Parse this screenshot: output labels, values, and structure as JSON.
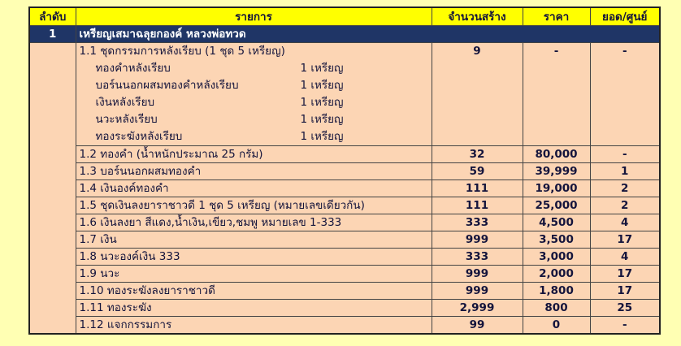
{
  "header": {
    "columns": [
      "ลำดับ",
      "รายการ",
      "จำนวนสร้าง",
      "ราคา",
      "ยอด/ศูนย์"
    ]
  },
  "group": {
    "number": "1",
    "title": "เหรียญเสมาฉลุยกองค์ หลวงพ่อทวด"
  },
  "items": [
    {
      "label": "1.1 ชุดกรรมการหลังเรียบ (1 ชุด 5 เหรียญ)",
      "qty": "9",
      "price": "-",
      "balance": "-",
      "sub": [
        {
          "name": "ทองคำหลังเรียบ",
          "count": "1 เหรียญ"
        },
        {
          "name": "บอร์นนอกผสมทองคำหลังเรียบ",
          "count": "1 เหรียญ"
        },
        {
          "name": "เงินหลังเรียบ",
          "count": "1 เหรียญ"
        },
        {
          "name": "นวะหลังเรียบ",
          "count": "1 เหรียญ"
        },
        {
          "name": "ทองระฆังหลังเรียบ",
          "count": "1 เหรียญ"
        }
      ]
    },
    {
      "label": "1.2 ทองคำ (น้ำหนักประมาณ 25 กรัม)",
      "qty": "32",
      "price": "80,000",
      "balance": "-"
    },
    {
      "label": "1.3 บอร์นนอกผสมทองคำ",
      "qty": "59",
      "price": "39,999",
      "balance": "1"
    },
    {
      "label": "1.4 เงินองค์ทองคำ",
      "qty": "111",
      "price": "19,000",
      "balance": "2"
    },
    {
      "label": "1.5 ชุดเงินลงยาราชาวดี 1 ชุด 5 เหรียญ (หมายเลขเดียวกัน)",
      "qty": "111",
      "price": "25,000",
      "balance": "2"
    },
    {
      "label": "1.6 เงินลงยา สีแดง,น้ำเงิน,เขียว,ชมพู หมายเลข 1-333",
      "qty": "333",
      "price": "4,500",
      "balance": "4"
    },
    {
      "label": "1.7 เงิน",
      "qty": "999",
      "price": "3,500",
      "balance": "17"
    },
    {
      "label": "1.8 นวะองค์เงิน 333",
      "qty": "333",
      "price": "3,000",
      "balance": "4"
    },
    {
      "label": "1.9 นวะ",
      "qty": "999",
      "price": "2,000",
      "balance": "17"
    },
    {
      "label": "1.10 ทองระฆังลงยาราชาวดี",
      "qty": "999",
      "price": "1,800",
      "balance": "17"
    },
    {
      "label": "1.11 ทองระฆัง",
      "qty": "2,999",
      "price": "800",
      "balance": "25"
    },
    {
      "label": "1.12 แจกกรรมการ",
      "qty": "99",
      "price": "0",
      "balance": "-"
    }
  ]
}
